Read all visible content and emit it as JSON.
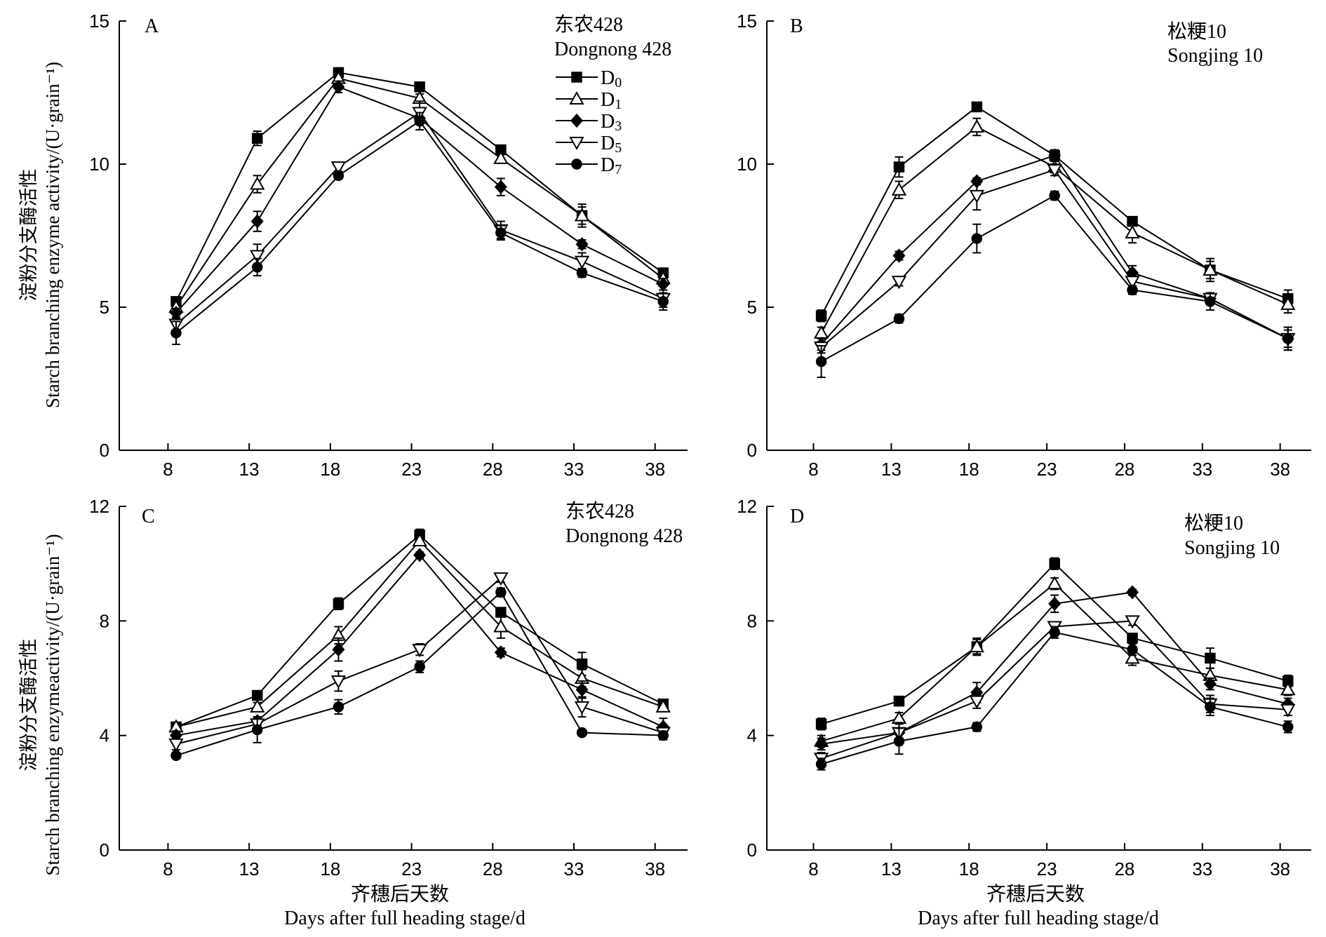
{
  "chart_data": [
    {
      "type": "line",
      "panel": "A",
      "variety": [
        "东农428",
        "Dongnong 428"
      ],
      "x": [
        8.5,
        13.5,
        18.5,
        23.5,
        28.5,
        33.5,
        38.5
      ],
      "xticks": [
        "8",
        "13",
        "18",
        "23",
        "28",
        "33",
        "38"
      ],
      "xlim": [
        5,
        40
      ],
      "ylim": [
        0,
        15
      ],
      "yticks": [
        "0",
        "5",
        "10",
        "15"
      ],
      "series": [
        {
          "name": "D0",
          "marker": "square-filled",
          "values": [
            5.2,
            10.9,
            13.2,
            12.7,
            10.5,
            8.2,
            6.2
          ],
          "errors": [
            0.15,
            0.25,
            0.12,
            0.12,
            0.15,
            0.4,
            0.1
          ]
        },
        {
          "name": "D1",
          "marker": "triangle-up-open",
          "values": [
            5.0,
            9.3,
            13.0,
            12.3,
            10.2,
            8.2,
            6.0
          ],
          "errors": [
            0.15,
            0.3,
            0.12,
            0.15,
            0.15,
            0.3,
            0.1
          ]
        },
        {
          "name": "D3",
          "marker": "diamond-filled",
          "values": [
            4.8,
            8.0,
            12.7,
            11.6,
            9.2,
            7.2,
            5.8
          ],
          "errors": [
            0.15,
            0.35,
            0.2,
            0.2,
            0.3,
            0.15,
            0.2
          ]
        },
        {
          "name": "D5",
          "marker": "triangle-down-open",
          "values": [
            4.4,
            6.8,
            9.9,
            11.8,
            7.7,
            6.6,
            5.3
          ],
          "errors": [
            0.2,
            0.4,
            0.15,
            0.4,
            0.3,
            0.3,
            0.3
          ]
        },
        {
          "name": "D7",
          "marker": "circle-filled",
          "values": [
            4.1,
            6.4,
            9.6,
            11.5,
            7.6,
            6.2,
            5.2
          ],
          "errors": [
            0.4,
            0.3,
            0.12,
            0.3,
            0.25,
            0.15,
            0.3
          ]
        }
      ]
    },
    {
      "type": "line",
      "panel": "B",
      "variety": [
        "松粳10",
        "Songjing 10"
      ],
      "x": [
        8.5,
        13.5,
        18.5,
        23.5,
        28.5,
        33.5,
        38.5
      ],
      "xticks": [
        "8",
        "13",
        "18",
        "23",
        "28",
        "33",
        "38"
      ],
      "xlim": [
        5,
        40
      ],
      "ylim": [
        0,
        15
      ],
      "yticks": [
        "0",
        "5",
        "10",
        "15"
      ],
      "series": [
        {
          "name": "D0",
          "marker": "square-filled",
          "values": [
            4.7,
            9.9,
            12.0,
            10.3,
            8.0,
            6.3,
            5.3
          ],
          "errors": [
            0.2,
            0.35,
            0.12,
            0.2,
            0.12,
            0.4,
            0.3
          ]
        },
        {
          "name": "D1",
          "marker": "triangle-up-open",
          "values": [
            4.1,
            9.1,
            11.3,
            9.9,
            7.6,
            6.3,
            5.1
          ],
          "errors": [
            0.2,
            0.3,
            0.3,
            0.2,
            0.35,
            0.3,
            0.3
          ]
        },
        {
          "name": "D3",
          "marker": "diamond-filled",
          "values": [
            3.7,
            6.8,
            9.4,
            10.3,
            6.2,
            5.3,
            3.9
          ],
          "errors": [
            0.2,
            0.15,
            0.12,
            0.15,
            0.25,
            0.2,
            0.4
          ]
        },
        {
          "name": "D5",
          "marker": "triangle-down-open",
          "values": [
            3.6,
            5.9,
            8.9,
            9.8,
            5.9,
            5.3,
            3.9
          ],
          "errors": [
            0.2,
            0.15,
            0.5,
            0.2,
            0.2,
            0.2,
            0.4
          ]
        },
        {
          "name": "D7",
          "marker": "circle-filled",
          "values": [
            3.1,
            4.6,
            7.4,
            8.9,
            5.6,
            5.2,
            3.9
          ],
          "errors": [
            0.55,
            0.15,
            0.5,
            0.15,
            0.15,
            0.3,
            0.3
          ]
        }
      ]
    },
    {
      "type": "line",
      "panel": "C",
      "variety": [
        "东农428",
        "Dongnong 428"
      ],
      "x": [
        8.5,
        13.5,
        18.5,
        23.5,
        28.5,
        33.5,
        38.5
      ],
      "xticks": [
        "8",
        "13",
        "18",
        "23",
        "28",
        "33",
        "38"
      ],
      "xlim": [
        5,
        40
      ],
      "ylim": [
        0,
        12
      ],
      "yticks": [
        "0",
        "4",
        "8",
        "12"
      ],
      "series": [
        {
          "name": "D0",
          "marker": "square-filled",
          "values": [
            4.3,
            5.4,
            8.6,
            11.0,
            8.3,
            6.5,
            5.1
          ],
          "errors": [
            0.15,
            0.1,
            0.2,
            0.2,
            0.15,
            0.4,
            0.1
          ]
        },
        {
          "name": "D1",
          "marker": "triangle-up-open",
          "values": [
            4.3,
            5.0,
            7.5,
            10.8,
            7.8,
            6.0,
            5.0
          ],
          "errors": [
            0.15,
            0.15,
            0.3,
            0.15,
            0.4,
            0.3,
            0.1
          ]
        },
        {
          "name": "D3",
          "marker": "diamond-filled",
          "values": [
            4.0,
            4.5,
            7.0,
            10.3,
            6.9,
            5.6,
            4.3
          ],
          "errors": [
            0.15,
            0.15,
            0.4,
            0.1,
            0.15,
            0.3,
            0.3
          ]
        },
        {
          "name": "D5",
          "marker": "triangle-down-open",
          "values": [
            3.7,
            4.4,
            5.9,
            7.0,
            9.5,
            5.0,
            4.1
          ],
          "errors": [
            0.2,
            0.2,
            0.35,
            0.2,
            0.15,
            0.35,
            0.2
          ]
        },
        {
          "name": "D7",
          "marker": "circle-filled",
          "values": [
            3.3,
            4.2,
            5.0,
            6.4,
            9.0,
            4.1,
            4.0
          ],
          "errors": [
            0.1,
            0.45,
            0.25,
            0.2,
            0.15,
            0.1,
            0.15
          ]
        }
      ]
    },
    {
      "type": "line",
      "panel": "D",
      "variety": [
        "松粳10",
        "Songjing 10"
      ],
      "x": [
        8.5,
        13.5,
        18.5,
        23.5,
        28.5,
        33.5,
        38.5
      ],
      "xticks": [
        "8",
        "13",
        "18",
        "23",
        "28",
        "33",
        "38"
      ],
      "xlim": [
        5,
        40
      ],
      "ylim": [
        0,
        12
      ],
      "yticks": [
        "0",
        "4",
        "8",
        "12"
      ],
      "series": [
        {
          "name": "D0",
          "marker": "square-filled",
          "values": [
            4.4,
            5.2,
            7.1,
            10.0,
            7.4,
            6.7,
            5.9
          ],
          "errors": [
            0.2,
            0.1,
            0.3,
            0.2,
            0.15,
            0.35,
            0.2
          ]
        },
        {
          "name": "D1",
          "marker": "triangle-up-open",
          "values": [
            3.8,
            4.6,
            7.1,
            9.3,
            6.7,
            6.1,
            5.6
          ],
          "errors": [
            0.2,
            0.2,
            0.25,
            0.2,
            0.25,
            0.25,
            0.2
          ]
        },
        {
          "name": "D3",
          "marker": "diamond-filled",
          "values": [
            3.7,
            4.1,
            5.5,
            8.6,
            9.0,
            5.8,
            5.1
          ],
          "errors": [
            0.2,
            0.3,
            0.35,
            0.3,
            0.1,
            0.2,
            0.2
          ]
        },
        {
          "name": "D5",
          "marker": "triangle-down-open",
          "values": [
            3.2,
            4.1,
            5.2,
            7.8,
            8.0,
            5.1,
            4.9
          ],
          "errors": [
            0.2,
            0.35,
            0.25,
            0.15,
            0.15,
            0.3,
            0.2
          ]
        },
        {
          "name": "D7",
          "marker": "circle-filled",
          "values": [
            3.0,
            3.8,
            4.3,
            7.6,
            7.0,
            5.0,
            4.3
          ],
          "errors": [
            0.2,
            0.45,
            0.15,
            0.2,
            0.2,
            0.3,
            0.2
          ]
        }
      ]
    }
  ],
  "legend": {
    "entries": [
      {
        "base": "D",
        "sub": "0"
      },
      {
        "base": "D",
        "sub": "1"
      },
      {
        "base": "D",
        "sub": "3"
      },
      {
        "base": "D",
        "sub": "5"
      },
      {
        "base": "D",
        "sub": "7"
      }
    ]
  },
  "ylabel_top": [
    "淀粉分支酶活性",
    "Starch branching enzyme activity/(U·grain⁻¹)"
  ],
  "ylabel_bottom": [
    "淀粉分支酶活性",
    "Starch branching enzymeactivity/(U·grain⁻¹)"
  ],
  "xlabel": [
    "齐穗后天数",
    "Days after full heading stage/d"
  ]
}
